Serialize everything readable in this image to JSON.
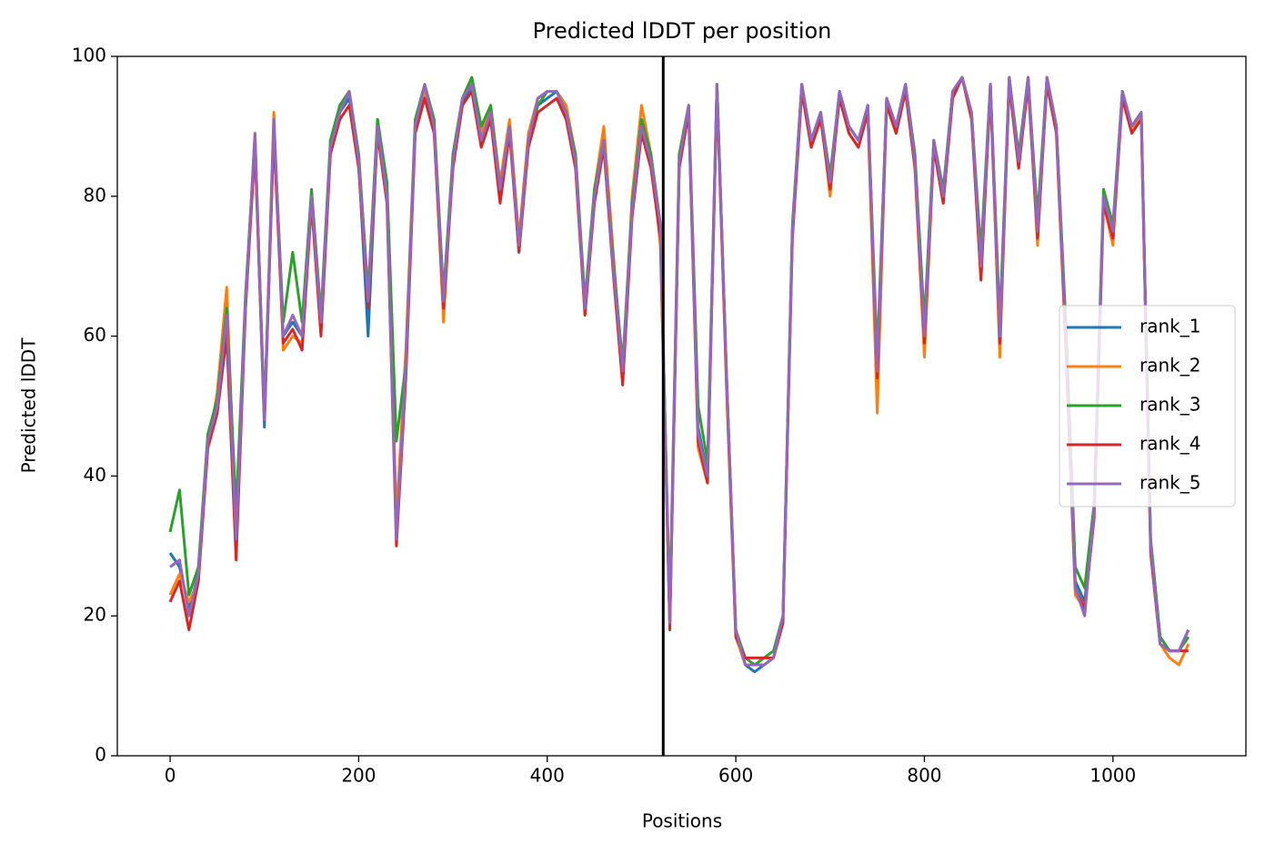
{
  "chart_data": {
    "type": "line",
    "title": "Predicted lDDT per position",
    "xlabel": "Positions",
    "ylabel": "Predicted lDDT",
    "xlim": [
      -56,
      1141
    ],
    "ylim": [
      0,
      100
    ],
    "xticks": [
      0,
      200,
      400,
      600,
      800,
      1000
    ],
    "yticks": [
      0,
      20,
      40,
      60,
      80,
      100
    ],
    "legend": "center right",
    "vlines": [
      523
    ],
    "vline_color": "#000000",
    "x": [
      0,
      10,
      20,
      30,
      40,
      50,
      60,
      70,
      80,
      90,
      100,
      110,
      120,
      130,
      140,
      150,
      160,
      170,
      180,
      190,
      200,
      210,
      220,
      230,
      240,
      250,
      260,
      270,
      280,
      290,
      300,
      310,
      320,
      330,
      340,
      350,
      360,
      370,
      380,
      390,
      400,
      410,
      420,
      430,
      440,
      450,
      460,
      470,
      480,
      490,
      500,
      510,
      520,
      530,
      540,
      550,
      560,
      570,
      580,
      590,
      600,
      610,
      620,
      630,
      640,
      650,
      660,
      670,
      680,
      690,
      700,
      710,
      720,
      730,
      740,
      750,
      760,
      770,
      780,
      790,
      800,
      810,
      820,
      830,
      840,
      850,
      860,
      870,
      880,
      890,
      900,
      910,
      920,
      930,
      940,
      950,
      960,
      970,
      980,
      990,
      1000,
      1010,
      1020,
      1030,
      1040,
      1050,
      1060,
      1070,
      1080
    ],
    "series": [
      {
        "name": "rank_1",
        "color": "#1f77b4",
        "values": [
          29,
          27,
          21,
          26,
          45,
          50,
          62,
          33,
          65,
          88,
          47,
          90,
          60,
          62,
          60,
          80,
          62,
          87,
          92,
          94,
          85,
          60,
          90,
          80,
          32,
          55,
          90,
          95,
          90,
          65,
          85,
          93,
          96,
          88,
          92,
          80,
          90,
          72,
          88,
          93,
          94,
          95,
          92,
          85,
          64,
          80,
          88,
          70,
          55,
          78,
          90,
          85,
          75,
          19,
          85,
          92,
          47,
          40,
          96,
          55,
          18,
          13,
          12,
          13,
          14,
          20,
          75,
          96,
          88,
          92,
          82,
          95,
          90,
          88,
          93,
          55,
          94,
          90,
          96,
          85,
          60,
          88,
          80,
          95,
          97,
          92,
          70,
          96,
          60,
          97,
          85,
          97,
          75,
          97,
          90,
          60,
          25,
          22,
          35,
          80,
          75,
          95,
          90,
          92,
          30,
          17,
          15,
          15,
          18
        ]
      },
      {
        "name": "rank_2",
        "color": "#ff7f0e",
        "values": [
          23,
          26,
          22,
          25,
          44,
          52,
          67,
          32,
          64,
          89,
          48,
          92,
          58,
          60,
          59,
          79,
          61,
          86,
          93,
          95,
          86,
          66,
          91,
          81,
          34,
          58,
          91,
          95,
          90,
          62,
          86,
          94,
          97,
          89,
          93,
          82,
          91,
          74,
          89,
          94,
          95,
          95,
          93,
          86,
          63,
          81,
          90,
          72,
          54,
          80,
          93,
          86,
          73,
          21,
          86,
          93,
          44,
          39,
          96,
          53,
          17,
          13,
          13,
          13,
          14,
          19,
          74,
          95,
          87,
          92,
          80,
          95,
          89,
          87,
          92,
          49,
          94,
          89,
          96,
          84,
          57,
          87,
          79,
          95,
          97,
          92,
          68,
          96,
          57,
          97,
          84,
          97,
          73,
          97,
          89,
          58,
          23,
          21,
          34,
          79,
          73,
          95,
          89,
          92,
          29,
          16,
          14,
          13,
          16
        ]
      },
      {
        "name": "rank_3",
        "color": "#2ca02c",
        "values": [
          32,
          38,
          23,
          27,
          46,
          51,
          64,
          35,
          66,
          88,
          49,
          90,
          62,
          72,
          62,
          81,
          63,
          88,
          93,
          95,
          86,
          66,
          91,
          82,
          45,
          56,
          91,
          96,
          91,
          66,
          86,
          94,
          97,
          90,
          93,
          81,
          90,
          73,
          88,
          93,
          95,
          95,
          92,
          86,
          65,
          81,
          88,
          71,
          56,
          79,
          91,
          86,
          76,
          20,
          86,
          93,
          50,
          42,
          96,
          55,
          18,
          14,
          13,
          14,
          15,
          20,
          76,
          96,
          88,
          92,
          83,
          95,
          90,
          88,
          93,
          57,
          94,
          90,
          96,
          86,
          62,
          88,
          81,
          95,
          97,
          92,
          72,
          96,
          62,
          97,
          86,
          97,
          77,
          97,
          90,
          62,
          27,
          24,
          36,
          81,
          76,
          95,
          90,
          92,
          31,
          17,
          15,
          15,
          17
        ]
      },
      {
        "name": "rank_4",
        "color": "#d62728",
        "values": [
          22,
          25,
          18,
          25,
          44,
          49,
          60,
          28,
          64,
          87,
          48,
          89,
          59,
          61,
          58,
          79,
          60,
          86,
          91,
          93,
          84,
          64,
          89,
          79,
          30,
          54,
          89,
          94,
          89,
          64,
          84,
          93,
          95,
          87,
          91,
          79,
          89,
          72,
          87,
          92,
          93,
          94,
          91,
          84,
          63,
          79,
          87,
          69,
          53,
          77,
          89,
          84,
          74,
          18,
          84,
          92,
          45,
          39,
          95,
          54,
          17,
          14,
          14,
          14,
          14,
          19,
          74,
          95,
          87,
          91,
          81,
          94,
          89,
          87,
          92,
          54,
          93,
          89,
          95,
          84,
          59,
          87,
          79,
          94,
          97,
          91,
          68,
          95,
          59,
          96,
          84,
          96,
          74,
          96,
          89,
          59,
          24,
          21,
          34,
          79,
          74,
          94,
          89,
          91,
          29,
          16,
          15,
          15,
          15
        ]
      },
      {
        "name": "rank_5",
        "color": "#9467bd",
        "values": [
          27,
          28,
          20,
          26,
          45,
          50,
          63,
          31,
          65,
          89,
          48,
          91,
          60,
          63,
          60,
          80,
          62,
          87,
          92,
          95,
          85,
          65,
          90,
          80,
          31,
          56,
          90,
          96,
          90,
          65,
          85,
          94,
          96,
          88,
          92,
          81,
          90,
          73,
          88,
          94,
          95,
          95,
          92,
          85,
          64,
          80,
          88,
          70,
          55,
          78,
          90,
          85,
          76,
          19,
          85,
          93,
          46,
          40,
          96,
          55,
          18,
          13,
          13,
          13,
          14,
          20,
          75,
          96,
          88,
          92,
          82,
          95,
          90,
          88,
          93,
          55,
          94,
          90,
          96,
          85,
          60,
          88,
          80,
          95,
          97,
          92,
          70,
          96,
          60,
          97,
          85,
          97,
          75,
          97,
          90,
          60,
          24,
          20,
          35,
          80,
          75,
          95,
          90,
          92,
          30,
          16,
          15,
          15,
          18
        ]
      }
    ]
  }
}
